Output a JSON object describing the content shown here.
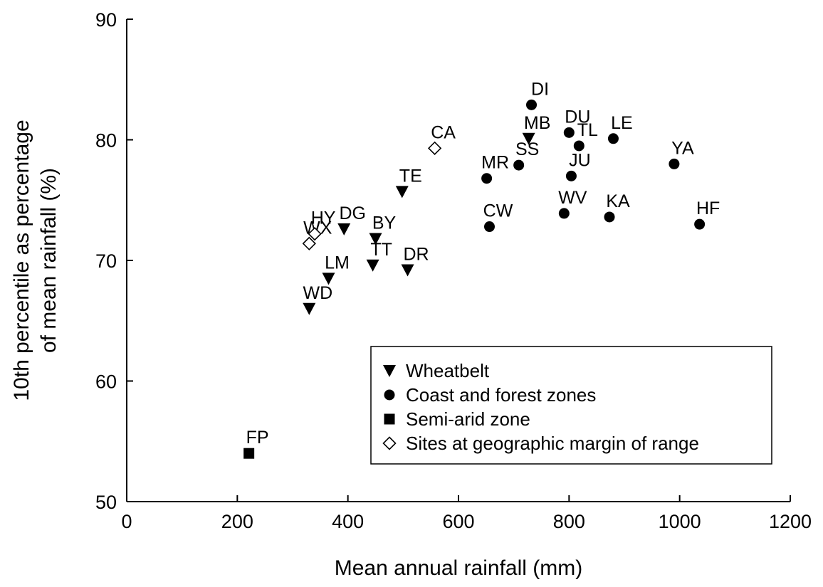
{
  "chart_data": {
    "type": "scatter",
    "title": "",
    "xlabel": "Mean annual rainfall (mm)",
    "ylabel_lines": [
      "10th percentile as percentage",
      "of mean rainfall (%)"
    ],
    "xlim": [
      0,
      1200
    ],
    "ylim": [
      50,
      90
    ],
    "xticks": [
      0,
      200,
      400,
      600,
      800,
      1000,
      1200
    ],
    "yticks": [
      50,
      60,
      70,
      80,
      90
    ],
    "grid": false,
    "legend_position": "bottom-right",
    "series": [
      {
        "name": "Wheatbelt",
        "marker": "triangle-down-filled",
        "points": [
          {
            "label": "WD",
            "x": 330,
            "y": 66.0
          },
          {
            "label": "LM",
            "x": 365,
            "y": 68.5
          },
          {
            "label": "DG",
            "x": 393,
            "y": 72.6
          },
          {
            "label": "BY",
            "x": 450,
            "y": 71.8
          },
          {
            "label": "TT",
            "x": 445,
            "y": 69.6
          },
          {
            "label": "TE",
            "x": 498,
            "y": 75.7
          },
          {
            "label": "DR",
            "x": 508,
            "y": 69.2
          },
          {
            "label": "MB",
            "x": 727,
            "y": 80.1
          }
        ]
      },
      {
        "name": "Coast and forest zones",
        "marker": "circle-filled",
        "points": [
          {
            "label": "MR",
            "x": 651,
            "y": 76.8
          },
          {
            "label": "CW",
            "x": 656,
            "y": 72.8
          },
          {
            "label": "SS",
            "x": 709,
            "y": 77.9
          },
          {
            "label": "DI",
            "x": 732,
            "y": 82.9
          },
          {
            "label": "DU",
            "x": 800,
            "y": 80.6
          },
          {
            "label": "TL",
            "x": 818,
            "y": 79.5
          },
          {
            "label": "JU",
            "x": 804,
            "y": 77.0
          },
          {
            "label": "WV",
            "x": 791,
            "y": 73.9
          },
          {
            "label": "LE",
            "x": 880,
            "y": 80.1
          },
          {
            "label": "KA",
            "x": 873,
            "y": 73.6
          },
          {
            "label": "YA",
            "x": 990,
            "y": 78.0
          },
          {
            "label": "HF",
            "x": 1036,
            "y": 73.0
          }
        ]
      },
      {
        "name": "Semi-arid zone",
        "marker": "square-filled",
        "points": [
          {
            "label": "FP",
            "x": 221,
            "y": 54.0
          }
        ]
      },
      {
        "name": "Sites at geographic margin of range",
        "marker": "diamond-open",
        "points": [
          {
            "label": "WX",
            "x": 330,
            "y": 71.4
          },
          {
            "label": "HY",
            "x": 340,
            "y": 72.2
          },
          {
            "label": "CA",
            "x": 557,
            "y": 79.3
          }
        ]
      }
    ]
  }
}
